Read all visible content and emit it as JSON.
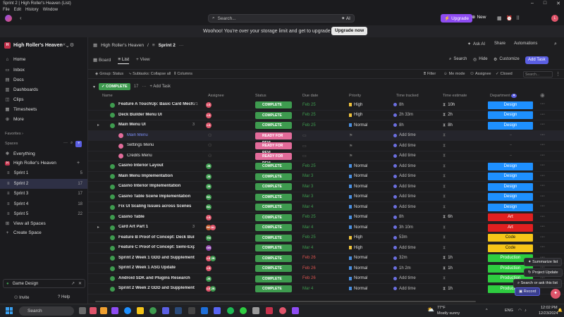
{
  "window": {
    "title": "Sprint 2 | High Roller's Heaven (List)",
    "menu": [
      "File",
      "Edit",
      "History",
      "Window"
    ]
  },
  "topbar": {
    "search_placeholder": "Search...",
    "ai_label": "AI",
    "upgrade_label": "Upgrade",
    "new_label": "New"
  },
  "banner": {
    "text": "Woohoo! You're over your storage limit and get to upgrade :)",
    "button": "Upgrade now"
  },
  "sidebar": {
    "workspace": {
      "badge": "H",
      "name": "High Roller's Heaven"
    },
    "nav": [
      {
        "label": "Home",
        "icon": "home-icon"
      },
      {
        "label": "Inbox",
        "icon": "inbox-icon"
      },
      {
        "label": "Docs",
        "icon": "docs-icon"
      },
      {
        "label": "Dashboards",
        "icon": "dashboard-icon"
      },
      {
        "label": "Clips",
        "icon": "clips-icon"
      },
      {
        "label": "Timesheets",
        "icon": "timesheets-icon"
      },
      {
        "label": "More",
        "icon": "more-icon"
      }
    ],
    "favorites_label": "Favorites",
    "spaces_label": "Spaces",
    "everything_label": "Everything",
    "space_name": "High Roller's Heaven",
    "sprints": [
      {
        "label": "Sprint 1",
        "count": "5"
      },
      {
        "label": "Sprint 2",
        "count": "17"
      },
      {
        "label": "Sprint 3",
        "count": "17"
      },
      {
        "label": "Sprint 4",
        "count": "18"
      },
      {
        "label": "Sprint 5",
        "count": "22"
      }
    ],
    "view_all": "View all Spaces",
    "create_space": "Create Space",
    "game_design": "Game Design",
    "invite": "Invite",
    "help": "Help"
  },
  "main": {
    "breadcrumb": {
      "space": "High Roller's Heaven",
      "list": "Sprint 2"
    },
    "tools": {
      "ask_ai": "Ask AI",
      "share": "Share",
      "automations": "Automations"
    },
    "tabs": [
      "Board",
      "List",
      "View"
    ],
    "view_tools": {
      "search": "Search",
      "hide": "Hide",
      "customize": "Customize",
      "add_task": "Add Task"
    },
    "filters": [
      "Group: Status",
      "Subtasks: Collapse all",
      "Columns"
    ],
    "right_filters": [
      "Filter",
      "Me mode",
      "Assignee",
      "Closed"
    ],
    "filter_search": "Search...",
    "group": {
      "label": "COMPLETE",
      "count": "17",
      "add_task": "Add Task"
    },
    "columns": [
      "Name",
      "Assignee",
      "Status",
      "Due date",
      "Priority",
      "Time tracked",
      "Time estimate",
      "Department"
    ]
  },
  "rows": [
    {
      "name": "Feature A TouchUp: Basic Card Mech...",
      "sub": "0/1",
      "type": "c",
      "indent": 0,
      "avatars": [
        [
          "LS",
          "#e0556b"
        ]
      ],
      "status": "COMPLETE",
      "due": "Feb 25",
      "due_color": "green",
      "priority": "High",
      "flag": "#f0c23b",
      "tracked": "8h",
      "estimate": "10h",
      "dept": "Design",
      "dept_color": "#1e90ff"
    },
    {
      "name": "Deck Builder Menu UI",
      "sub": "",
      "type": "c",
      "indent": 0,
      "avatars": [
        [
          "LS",
          "#e0556b"
        ]
      ],
      "status": "COMPLETE",
      "due": "Feb 25",
      "due_color": "green",
      "priority": "High",
      "flag": "#f0c23b",
      "tracked": "2h 33m",
      "estimate": "2h",
      "dept": "Design",
      "dept_color": "#1e90ff"
    },
    {
      "name": "Main Menu UI",
      "sub": "3",
      "type": "c",
      "indent": 0,
      "caret": true,
      "avatars": [
        [
          "LS",
          "#e0556b"
        ]
      ],
      "status": "COMPLETE",
      "due": "Feb 25",
      "due_color": "green",
      "priority": "Normal",
      "flag": "#4a90e2",
      "tracked": "8h",
      "estimate": "8h",
      "dept": "Design",
      "dept_color": "#1e90ff"
    },
    {
      "name": "Main Menu",
      "sub": "",
      "type": "r",
      "indent": 1,
      "link": true,
      "hl": true,
      "avatars": [],
      "status": "READY FOR REVI...",
      "due": "",
      "due_color": "",
      "priority": "",
      "flag": "",
      "tracked": "Add time",
      "estimate": "",
      "dept": "",
      "dept_color": ""
    },
    {
      "name": "Settings Menu",
      "sub": "",
      "type": "r",
      "indent": 1,
      "avatars": [],
      "status": "READY FOR REVI...",
      "due": "",
      "due_color": "",
      "priority": "",
      "flag": "",
      "tracked": "Add time",
      "estimate": "",
      "dept": "",
      "dept_color": ""
    },
    {
      "name": "Credits Menu",
      "sub": "",
      "type": "r",
      "indent": 1,
      "avatars": [],
      "status": "READY FOR REVI...",
      "due": "",
      "due_color": "",
      "priority": "",
      "flag": "",
      "tracked": "Add time",
      "estimate": "",
      "dept": "",
      "dept_color": ""
    },
    {
      "name": "Casino Interior Layout",
      "sub": "",
      "type": "c",
      "indent": 0,
      "avatars": [
        [
          "JB",
          "#3e9b4f"
        ]
      ],
      "status": "COMPLETE",
      "due": "Feb 25",
      "due_color": "green",
      "priority": "Normal",
      "flag": "#4a90e2",
      "tracked": "Add time",
      "estimate": "",
      "dept": "Design",
      "dept_color": "#1e90ff"
    },
    {
      "name": "Main Menu Implementation",
      "sub": "",
      "type": "c",
      "indent": 0,
      "avatars": [
        [
          "JB",
          "#3e9b4f"
        ]
      ],
      "status": "COMPLETE",
      "due": "Mar 3",
      "due_color": "green",
      "priority": "Normal",
      "flag": "#4a90e2",
      "tracked": "Add time",
      "estimate": "",
      "dept": "Design",
      "dept_color": "#1e90ff"
    },
    {
      "name": "Casino Interior Implementation",
      "sub": "",
      "type": "c",
      "indent": 0,
      "avatars": [
        [
          "JB",
          "#3e9b4f"
        ]
      ],
      "status": "COMPLETE",
      "due": "Mar 3",
      "due_color": "green",
      "priority": "Normal",
      "flag": "#4a90e2",
      "tracked": "Add time",
      "estimate": "",
      "dept": "Design",
      "dept_color": "#1e90ff"
    },
    {
      "name": "Casino Table Scene Implementation",
      "sub": "",
      "type": "c",
      "indent": 0,
      "avatars": [
        [
          "WL",
          "#3e9b4f"
        ]
      ],
      "status": "COMPLETE",
      "due": "Mar 3",
      "due_color": "green",
      "priority": "Normal",
      "flag": "#4a90e2",
      "tracked": "Add time",
      "estimate": "",
      "dept": "Design",
      "dept_color": "#1e90ff"
    },
    {
      "name": "Fix UI Scaling Issues across Scenes",
      "sub": "",
      "type": "c",
      "indent": 0,
      "avatars": [
        [
          "WL",
          "#3e9b4f"
        ]
      ],
      "status": "COMPLETE",
      "due": "Mar 4",
      "due_color": "green",
      "priority": "Normal",
      "flag": "#4a90e2",
      "tracked": "Add time",
      "estimate": "",
      "dept": "Design",
      "dept_color": "#1e90ff"
    },
    {
      "name": "Casino Table",
      "sub": "",
      "type": "c",
      "indent": 0,
      "avatars": [
        [
          "LS",
          "#e0556b"
        ]
      ],
      "status": "COMPLETE",
      "due": "Feb 25",
      "due_color": "green",
      "priority": "Normal",
      "flag": "#4a90e2",
      "tracked": "8h",
      "estimate": "6h",
      "dept": "Art",
      "dept_color": "#e02020"
    },
    {
      "name": "Card Art Part 1",
      "sub": "3",
      "type": "c",
      "indent": 0,
      "caret": true,
      "avatars": [
        [
          "WL",
          "#c45a2e"
        ],
        [
          "AL",
          "#e0556b"
        ]
      ],
      "status": "COMPLETE",
      "due": "Mar 4",
      "due_color": "green",
      "priority": "Normal",
      "flag": "#4a90e2",
      "tracked": "3h 10m",
      "estimate": "",
      "dept": "Art",
      "dept_color": "#e02020"
    },
    {
      "name": "Feature B Proof of Concept: Deck Buildi...",
      "sub": "",
      "type": "c",
      "indent": 0,
      "avatars": [
        [
          "TM",
          "#3e9b4f"
        ]
      ],
      "status": "COMPLETE",
      "due": "Feb 25",
      "due_color": "green",
      "priority": "High",
      "flag": "#f0c23b",
      "tracked": "53m",
      "estimate": "",
      "dept": "Code",
      "dept_color": "#f5c518"
    },
    {
      "name": "Feature C Proof of Concept: Semi-Explorab...",
      "sub": "",
      "type": "c",
      "indent": 0,
      "avatars": [
        [
          "GB",
          "#8e44ad"
        ]
      ],
      "status": "COMPLETE",
      "due": "Mar 4",
      "due_color": "green",
      "priority": "High",
      "flag": "#f0c23b",
      "tracked": "Add time",
      "estimate": "",
      "dept": "Code",
      "dept_color": "#f5c518"
    },
    {
      "name": "Sprint 2 Week 1 GDD and Supplemental Up...",
      "sub": "",
      "type": "c",
      "indent": 0,
      "avatars": [
        [
          "LS",
          "#e0556b"
        ],
        [
          "JB",
          "#3e9b4f"
        ]
      ],
      "status": "COMPLETE",
      "due": "Feb 26",
      "due_color": "red",
      "priority": "Normal",
      "flag": "#4a90e2",
      "tracked": "32m",
      "estimate": "1h",
      "dept": "Production",
      "dept_color": "#2ecc40"
    },
    {
      "name": "Sprint 2 Week 1 ASG Update",
      "sub": "",
      "type": "c",
      "indent": 0,
      "avatars": [
        [
          "LS",
          "#e0556b"
        ]
      ],
      "status": "COMPLETE",
      "due": "Feb 26",
      "due_color": "red",
      "priority": "Normal",
      "flag": "#4a90e2",
      "tracked": "1h 2m",
      "estimate": "1h",
      "dept": "Production",
      "dept_color": "#2ecc40"
    },
    {
      "name": "Android SDK and Plugins Research",
      "sub": "",
      "type": "c",
      "indent": 0,
      "avatars": [
        [
          "JB",
          "#3e9b4f"
        ]
      ],
      "status": "COMPLETE",
      "due": "Feb 26",
      "due_color": "red",
      "priority": "Normal",
      "flag": "#4a90e2",
      "tracked": "Add time",
      "estimate": "",
      "dept": "Production",
      "dept_color": "#2ecc40"
    },
    {
      "name": "Sprint 2 Week 2 GDD and Supplemental Up...",
      "sub": "",
      "type": "c",
      "indent": 0,
      "avatars": [
        [
          "LS",
          "#e0556b"
        ],
        [
          "JB",
          "#3e9b4f"
        ]
      ],
      "status": "COMPLETE",
      "due": "Mar 4",
      "due_color": "green",
      "priority": "Normal",
      "flag": "#4a90e2",
      "tracked": "Add time",
      "estimate": "1h",
      "dept": "Production",
      "dept_color": "#2ecc40"
    }
  ],
  "popups": {
    "summarize": "Summarize list",
    "project_update": "Project Update",
    "ask": "Search or ask this list",
    "record": "Record"
  },
  "taskbar": {
    "search": "Search",
    "weather_temp": "77°F",
    "weather_desc": "Mostly sunny",
    "lang": "ENG",
    "time": "12:02 PM",
    "date": "12/23/2024"
  }
}
